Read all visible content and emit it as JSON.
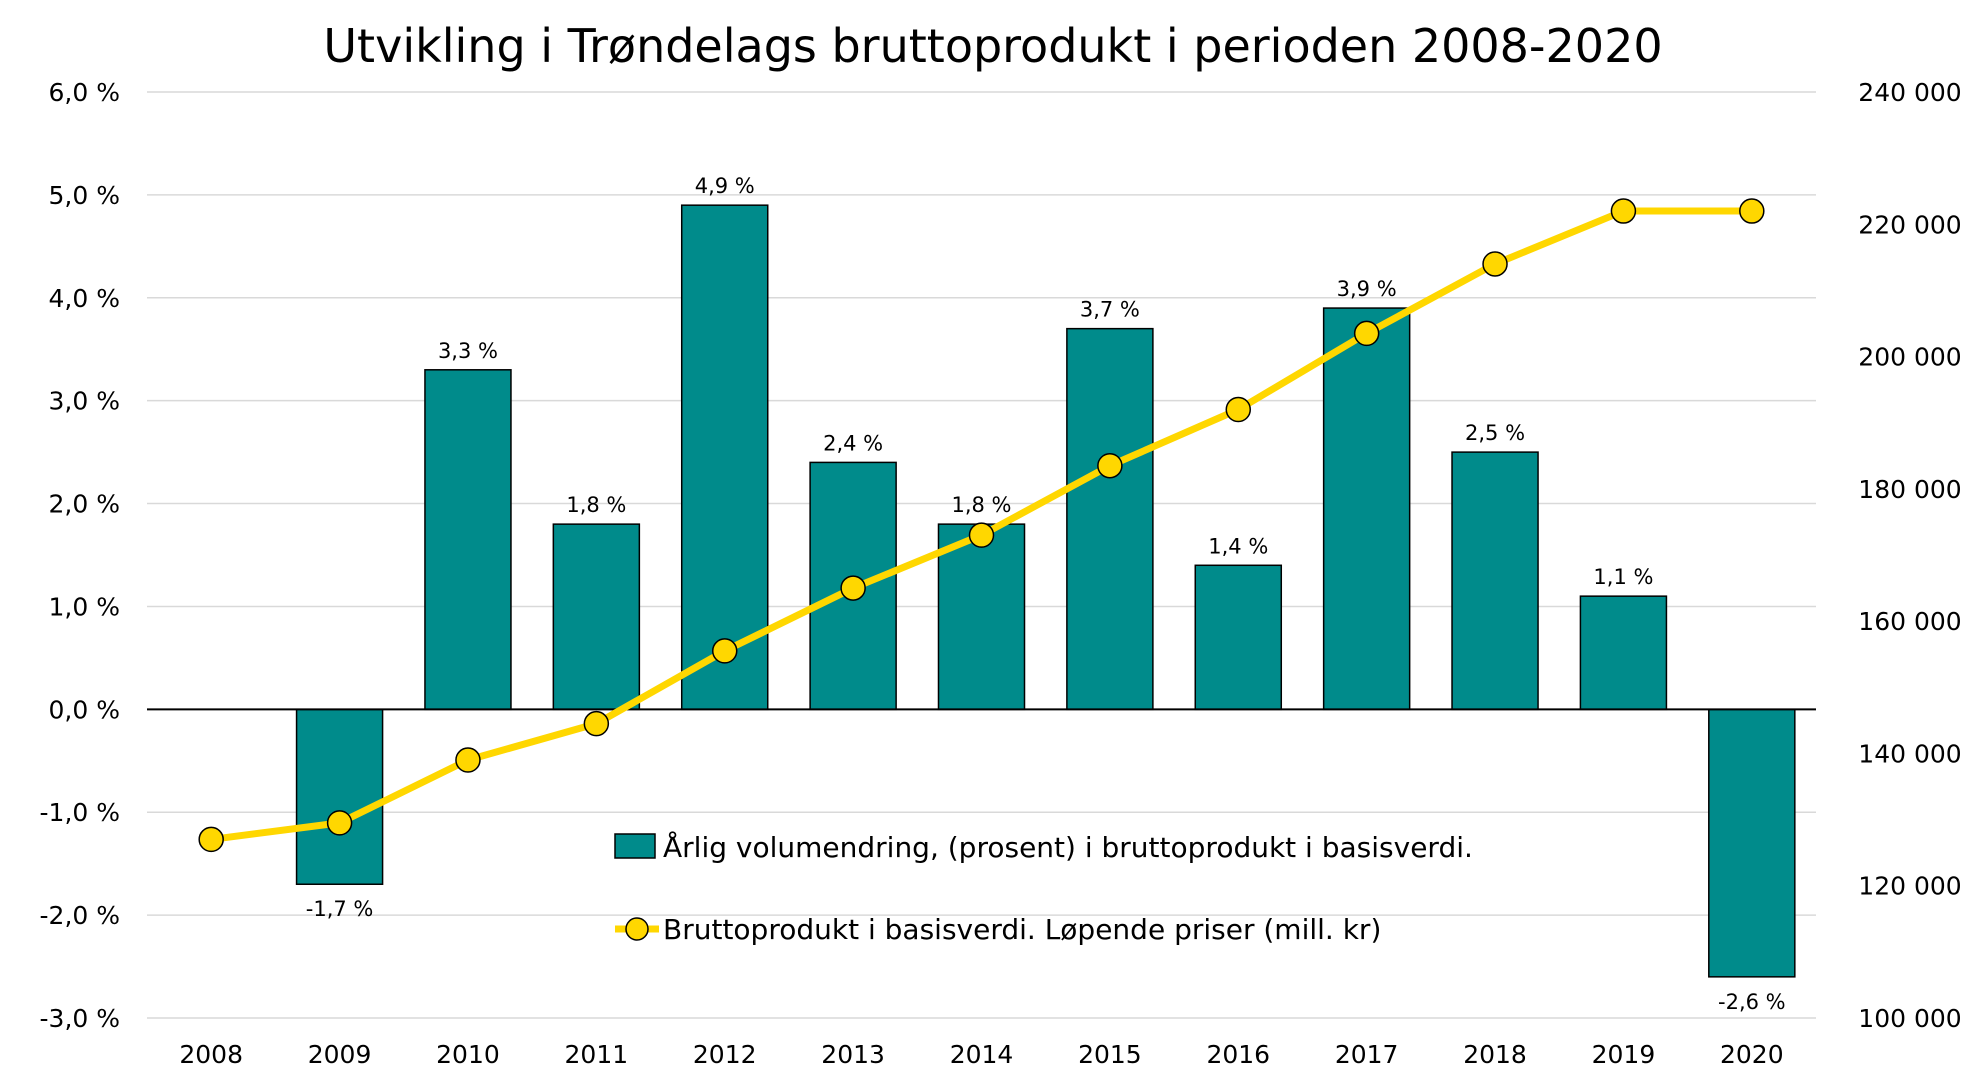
{
  "chart_data": {
    "type": "bar+line",
    "title": "Utvikling i Trøndelags bruttoprodukt i perioden 2008-2020",
    "categories": [
      "2008",
      "2009",
      "2010",
      "2011",
      "2012",
      "2013",
      "2014",
      "2015",
      "2016",
      "2017",
      "2018",
      "2019",
      "2020"
    ],
    "series": [
      {
        "name": "Årlig volumendring, (prosent) i bruttoprodukt i basisverdi.",
        "type": "bar",
        "axis": "left",
        "color": "#008b8b",
        "values": [
          null,
          -1.7,
          3.3,
          1.8,
          4.9,
          2.4,
          1.8,
          3.7,
          1.4,
          3.9,
          2.5,
          1.1,
          -2.6
        ],
        "labels": [
          "",
          "-1,7 %",
          "3,3 %",
          "1,8 %",
          "4,9 %",
          "2,4 %",
          "1,8 %",
          "3,7 %",
          "1,4 %",
          "3,9 %",
          "2,5 %",
          "1,1 %",
          "-2,6 %"
        ]
      },
      {
        "name": "Bruttoprodukt i basisverdi. Løpende priser (mill. kr)",
        "type": "line",
        "axis": "right",
        "color": "#ffd700",
        "values": [
          127000,
          129500,
          139000,
          144500,
          155500,
          165000,
          173000,
          183500,
          192000,
          203500,
          214000,
          222000,
          222000
        ]
      }
    ],
    "y_left": {
      "min": -3.0,
      "max": 6.0,
      "ticks": [
        6.0,
        5.0,
        4.0,
        3.0,
        2.0,
        1.0,
        0.0,
        -1.0,
        -2.0,
        -3.0
      ],
      "tick_labels": [
        "6,0 %",
        "5,0 %",
        "4,0 %",
        "3,0 %",
        "2,0 %",
        "1,0 %",
        "0,0 %",
        "-1,0 %",
        "-2,0 %",
        "-3,0 %"
      ]
    },
    "y_right": {
      "min": 100000,
      "max": 240000,
      "ticks": [
        240000,
        220000,
        200000,
        180000,
        160000,
        140000,
        120000,
        100000
      ],
      "tick_labels": [
        "240 000",
        "220 000",
        "200 000",
        "180 000",
        "160 000",
        "140 000",
        "120 000",
        "100 000"
      ]
    },
    "grid": true,
    "legend_position": "inside-bottom-center"
  }
}
